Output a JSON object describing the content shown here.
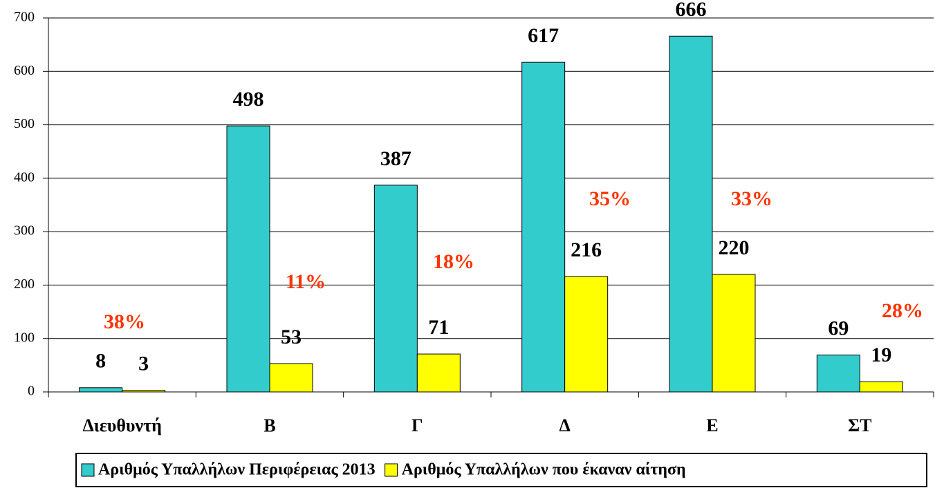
{
  "chart_data": {
    "type": "bar",
    "categories": [
      "Διευθυντή",
      "Β",
      "Γ",
      "Δ",
      "Ε",
      "ΣΤ"
    ],
    "series": [
      {
        "name": "Αριθμός Υπαλλήλων Περιφέρειας 2013",
        "color": "#33cccc",
        "values": [
          8,
          498,
          387,
          617,
          666,
          69
        ]
      },
      {
        "name": "Αριθμός Υπαλλήλων που έκαναν αίτηση",
        "color": "#ffff00",
        "values": [
          3,
          53,
          71,
          216,
          220,
          19
        ]
      }
    ],
    "annotations": [
      "38%",
      "11%",
      "18%",
      "35%",
      "33%",
      "28%"
    ],
    "ylim": [
      0,
      700
    ],
    "yticks": [
      0,
      100,
      200,
      300,
      400,
      500,
      600,
      700
    ],
    "grid": true
  }
}
